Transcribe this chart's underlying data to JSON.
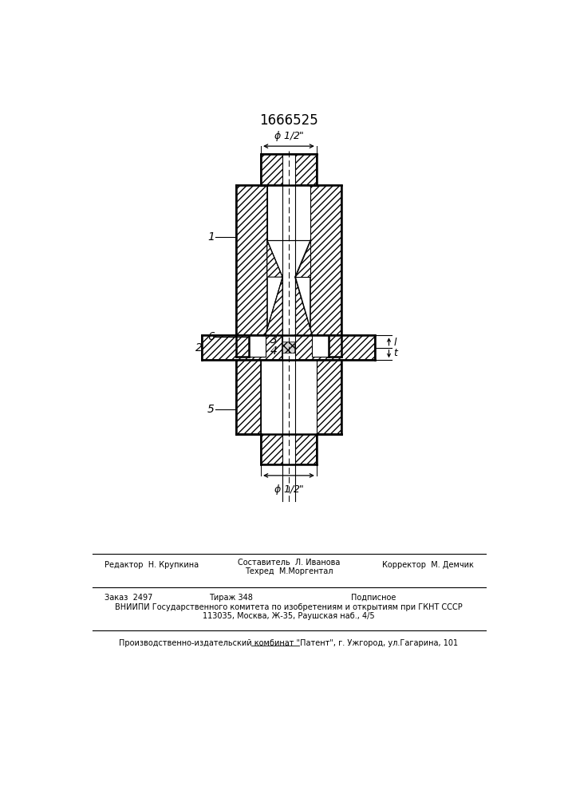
{
  "patent_number": "1666525",
  "bg_color": "#ffffff",
  "line_color": "#000000",
  "footer_lines_1_left": "Редактор  Н. Крупкина",
  "footer_lines_1_center_top": "Составитель  Л. Иванова",
  "footer_lines_1_center_bot": "Техред  М.Моргентал",
  "footer_lines_1_right": "Корректор  М. Демчик",
  "footer_order": "Заказ  2497",
  "footer_tirazh": "Тираж 348",
  "footer_podp": "Подписное",
  "footer_vniip1": "ВНИИПИ Государственного комитета по изобретениям и открытиям при ГКНТ СССР",
  "footer_vniip2": "113035, Москва, Ж-35, Раушская наб., 4/5",
  "footer_patent": "Производственно-издательский комбинат \"Патент\", г. Ужгород, ул.Гагарина, 101"
}
